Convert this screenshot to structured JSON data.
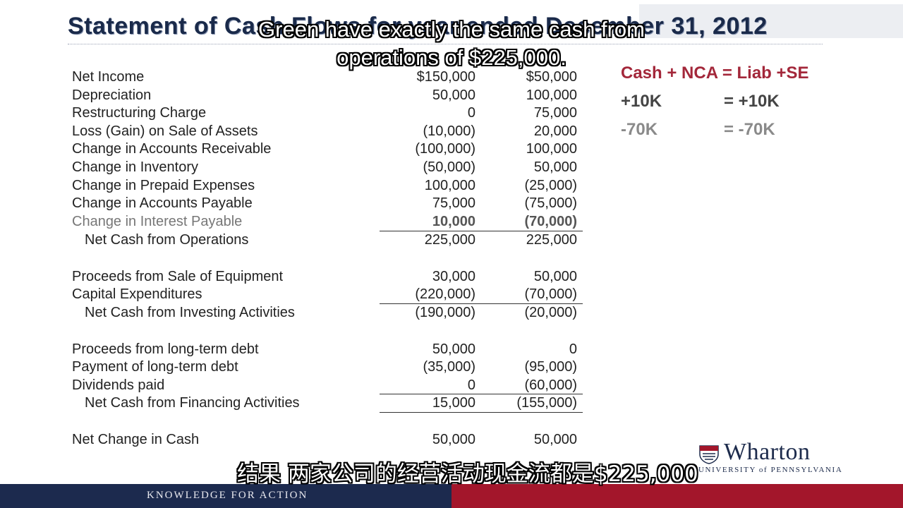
{
  "slide": {
    "title": "Statement of Cash Flows for year ended December 31, 2012"
  },
  "caption_top": "Green have exactly the same cash from operations of $225,000.",
  "caption_bottom": "结果 两家公司的经营活动现金流都是$225,000",
  "table": {
    "rows": [
      {
        "label": "Net Income",
        "v1": "$150,000",
        "v2": "$50,000"
      },
      {
        "label": "Depreciation",
        "v1": "50,000",
        "v2": "100,000"
      },
      {
        "label": "Restructuring Charge",
        "v1": "0",
        "v2": "75,000"
      },
      {
        "label": "Loss (Gain) on Sale of Assets",
        "v1": "(10,000)",
        "v2": "20,000"
      },
      {
        "label": "Change in Accounts Receivable",
        "v1": "(100,000)",
        "v2": "100,000"
      },
      {
        "label": "Change in Inventory",
        "v1": "(50,000)",
        "v2": "50,000"
      },
      {
        "label": "Change in Prepaid Expenses",
        "v1": "100,000",
        "v2": "(25,000)"
      },
      {
        "label": "Change in Accounts Payable",
        "v1": "75,000",
        "v2": "(75,000)"
      },
      {
        "label": "Change in Interest Payable",
        "v1": "10,000",
        "v2": "(70,000)"
      },
      {
        "label": "Net Cash from Operations",
        "v1": "225,000",
        "v2": "225,000"
      },
      {
        "label": "Proceeds from Sale of Equipment",
        "v1": "30,000",
        "v2": "50,000"
      },
      {
        "label": "Capital Expenditures",
        "v1": "(220,000)",
        "v2": "(70,000)"
      },
      {
        "label": "Net Cash from Investing Activities",
        "v1": "(190,000)",
        "v2": "(20,000)"
      },
      {
        "label": "Proceeds from long-term debt",
        "v1": "50,000",
        "v2": "0"
      },
      {
        "label": "Payment of long-term debt",
        "v1": "(35,000)",
        "v2": "(95,000)"
      },
      {
        "label": "Dividends paid",
        "v1": "0",
        "v2": "(60,000)"
      },
      {
        "label": "Net Cash from Financing Activities",
        "v1": "15,000",
        "v2": "(155,000)"
      },
      {
        "label": "Net Change in Cash",
        "v1": "50,000",
        "v2": "50,000"
      }
    ]
  },
  "equation": {
    "header": "Cash + NCA = Liab +SE",
    "row1_left": "+10K",
    "row1_right": "=  +10K",
    "row2_left": "-70K",
    "row2_right": "=  -70K"
  },
  "logo": {
    "name": "Wharton",
    "subtitle": "UNIVERSITY of PENNSYLVANIA"
  },
  "footer": {
    "tagline": "KNOWLEDGE FOR ACTION"
  },
  "colors": {
    "navy": "#1c2a4e",
    "crimson": "#a3162b",
    "equation_red": "#a3273a"
  }
}
